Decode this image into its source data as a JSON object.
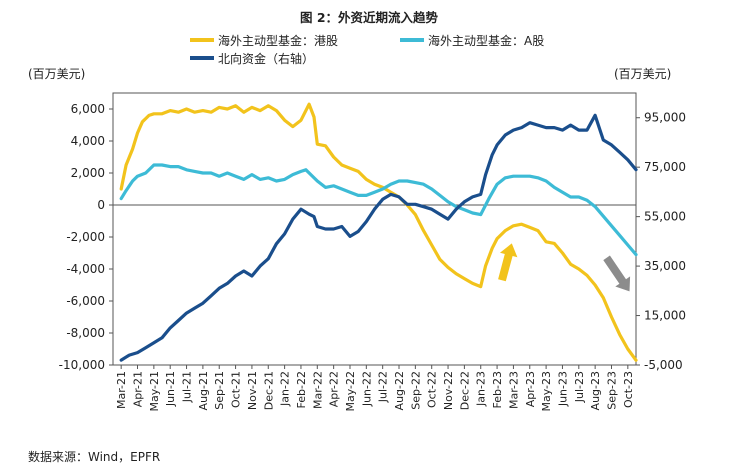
{
  "figure_title": "图 2：外资近期流入趋势",
  "source_note": "数据来源：Wind，EPFR",
  "colors": {
    "hk_active": "#F2C31C",
    "a_active": "#3DBBD6",
    "northbound": "#1A4E8C",
    "arrow_up": "#F2C31C",
    "arrow_down": "#8C8C8C"
  },
  "chart_data": {
    "type": "line",
    "y_left": {
      "unit_label": "(百万美元)",
      "range": [
        -10000,
        7000
      ],
      "ticks": [
        -10000,
        -8000,
        -6000,
        -4000,
        -2000,
        0,
        2000,
        4000,
        6000
      ],
      "tick_labels": [
        "-10,000",
        "-8,000",
        "-6,000",
        "-4,000",
        "-2,000",
        "0",
        "2,000",
        "4,000",
        "6,000"
      ]
    },
    "y_right": {
      "unit_label": "(百万美元)",
      "range": [
        -5000,
        105000
      ],
      "ticks": [
        -5000,
        15000,
        35000,
        55000,
        75000,
        95000
      ],
      "tick_labels": [
        "-5,000",
        "15,000",
        "35,000",
        "55,000",
        "75,000",
        "95,000"
      ]
    },
    "x_tick_labels": [
      "Mar-21",
      "Apr-21",
      "May-21",
      "Jun-21",
      "Jul-21",
      "Aug-21",
      "Sep-21",
      "Oct-21",
      "Nov-21",
      "Dec-21",
      "Jan-22",
      "Feb-22",
      "Mar-22",
      "Apr-22",
      "May-22",
      "Jun-22",
      "Jul-22",
      "Aug-22",
      "Sep-22",
      "Oct-22",
      "Nov-22",
      "Dec-22",
      "Jan-23",
      "Feb-23",
      "Mar-23",
      "Apr-23",
      "May-23",
      "Jun-23",
      "Jul-23",
      "Aug-23",
      "Sep-23",
      "Oct-23"
    ],
    "series": [
      {
        "name": "海外主动型基金：港股",
        "axis": "left",
        "color_key": "hk_active",
        "points": [
          [
            0,
            1000
          ],
          [
            0.3,
            2500
          ],
          [
            0.7,
            3500
          ],
          [
            1,
            4500
          ],
          [
            1.3,
            5200
          ],
          [
            1.7,
            5600
          ],
          [
            2,
            5700
          ],
          [
            2.5,
            5700
          ],
          [
            3,
            5900
          ],
          [
            3.5,
            5800
          ],
          [
            4,
            6000
          ],
          [
            4.5,
            5800
          ],
          [
            5,
            5900
          ],
          [
            5.5,
            5800
          ],
          [
            6,
            6100
          ],
          [
            6.5,
            6000
          ],
          [
            7,
            6200
          ],
          [
            7.5,
            5800
          ],
          [
            8,
            6100
          ],
          [
            8.5,
            5900
          ],
          [
            9,
            6200
          ],
          [
            9.5,
            5900
          ],
          [
            10,
            5300
          ],
          [
            10.5,
            4900
          ],
          [
            11,
            5300
          ],
          [
            11.5,
            6300
          ],
          [
            11.8,
            5500
          ],
          [
            12,
            3800
          ],
          [
            12.5,
            3700
          ],
          [
            13,
            3000
          ],
          [
            13.5,
            2500
          ],
          [
            14,
            2300
          ],
          [
            14.5,
            2100
          ],
          [
            15,
            1600
          ],
          [
            15.5,
            1300
          ],
          [
            16,
            1100
          ],
          [
            16.5,
            800
          ],
          [
            17,
            500
          ],
          [
            17.5,
            0
          ],
          [
            18,
            -600
          ],
          [
            18.5,
            -1600
          ],
          [
            19,
            -2500
          ],
          [
            19.5,
            -3400
          ],
          [
            20,
            -3900
          ],
          [
            20.5,
            -4300
          ],
          [
            21,
            -4600
          ],
          [
            21.5,
            -4900
          ],
          [
            22,
            -5100
          ],
          [
            22.3,
            -3800
          ],
          [
            22.7,
            -2700
          ],
          [
            23,
            -2100
          ],
          [
            23.5,
            -1600
          ],
          [
            24,
            -1300
          ],
          [
            24.5,
            -1200
          ],
          [
            25,
            -1400
          ],
          [
            25.5,
            -1600
          ],
          [
            26,
            -2300
          ],
          [
            26.5,
            -2400
          ],
          [
            27,
            -3000
          ],
          [
            27.5,
            -3700
          ],
          [
            28,
            -4000
          ],
          [
            28.5,
            -4400
          ],
          [
            29,
            -5000
          ],
          [
            29.5,
            -5800
          ],
          [
            30,
            -7000
          ],
          [
            30.5,
            -8100
          ],
          [
            31,
            -9000
          ],
          [
            31.5,
            -9700
          ]
        ]
      },
      {
        "name": "海外主动型基金：A股",
        "axis": "left",
        "color_key": "a_active",
        "points": [
          [
            0,
            400
          ],
          [
            0.3,
            900
          ],
          [
            0.7,
            1500
          ],
          [
            1,
            1800
          ],
          [
            1.5,
            2000
          ],
          [
            2,
            2500
          ],
          [
            2.5,
            2500
          ],
          [
            3,
            2400
          ],
          [
            3.5,
            2400
          ],
          [
            4,
            2200
          ],
          [
            4.5,
            2100
          ],
          [
            5,
            2000
          ],
          [
            5.5,
            2000
          ],
          [
            6,
            1800
          ],
          [
            6.5,
            2000
          ],
          [
            7,
            1800
          ],
          [
            7.5,
            1600
          ],
          [
            8,
            1900
          ],
          [
            8.5,
            1600
          ],
          [
            9,
            1700
          ],
          [
            9.5,
            1500
          ],
          [
            10,
            1600
          ],
          [
            10.5,
            1900
          ],
          [
            11,
            2100
          ],
          [
            11.3,
            2200
          ],
          [
            11.6,
            1900
          ],
          [
            12,
            1500
          ],
          [
            12.5,
            1100
          ],
          [
            13,
            1200
          ],
          [
            13.5,
            1000
          ],
          [
            14,
            800
          ],
          [
            14.5,
            600
          ],
          [
            15,
            600
          ],
          [
            15.5,
            800
          ],
          [
            16,
            1000
          ],
          [
            16.5,
            1300
          ],
          [
            17,
            1500
          ],
          [
            17.5,
            1500
          ],
          [
            18,
            1400
          ],
          [
            18.5,
            1300
          ],
          [
            19,
            1000
          ],
          [
            19.5,
            600
          ],
          [
            20,
            200
          ],
          [
            20.5,
            -100
          ],
          [
            21,
            -300
          ],
          [
            21.5,
            -500
          ],
          [
            22,
            -600
          ],
          [
            22.5,
            400
          ],
          [
            23,
            1300
          ],
          [
            23.5,
            1700
          ],
          [
            24,
            1800
          ],
          [
            24.5,
            1800
          ],
          [
            25,
            1800
          ],
          [
            25.5,
            1700
          ],
          [
            26,
            1500
          ],
          [
            26.5,
            1100
          ],
          [
            27,
            800
          ],
          [
            27.5,
            500
          ],
          [
            28,
            500
          ],
          [
            28.5,
            300
          ],
          [
            29,
            -100
          ],
          [
            29.5,
            -700
          ],
          [
            30,
            -1300
          ],
          [
            30.5,
            -1900
          ],
          [
            31,
            -2500
          ],
          [
            31.5,
            -3100
          ]
        ]
      },
      {
        "name": "北向资金（右轴）",
        "axis": "right",
        "color_key": "northbound",
        "points": [
          [
            0,
            -3000
          ],
          [
            0.5,
            -1000
          ],
          [
            1,
            0
          ],
          [
            1.5,
            2000
          ],
          [
            2,
            4000
          ],
          [
            2.5,
            6000
          ],
          [
            3,
            10000
          ],
          [
            3.5,
            13000
          ],
          [
            4,
            16000
          ],
          [
            4.5,
            18000
          ],
          [
            5,
            20000
          ],
          [
            5.5,
            23000
          ],
          [
            6,
            26000
          ],
          [
            6.5,
            28000
          ],
          [
            7,
            31000
          ],
          [
            7.5,
            33000
          ],
          [
            8,
            31000
          ],
          [
            8.5,
            35000
          ],
          [
            9,
            38000
          ],
          [
            9.5,
            44000
          ],
          [
            10,
            48000
          ],
          [
            10.5,
            54000
          ],
          [
            11,
            58000
          ],
          [
            11.5,
            56000
          ],
          [
            11.8,
            55000
          ],
          [
            12,
            51000
          ],
          [
            12.5,
            50000
          ],
          [
            13,
            50000
          ],
          [
            13.5,
            51000
          ],
          [
            14,
            47000
          ],
          [
            14.5,
            49000
          ],
          [
            15,
            53000
          ],
          [
            15.5,
            58000
          ],
          [
            16,
            62000
          ],
          [
            16.5,
            64000
          ],
          [
            17,
            63000
          ],
          [
            17.5,
            60000
          ],
          [
            18,
            60000
          ],
          [
            18.5,
            59000
          ],
          [
            19,
            58000
          ],
          [
            19.5,
            56000
          ],
          [
            20,
            54000
          ],
          [
            20.5,
            58000
          ],
          [
            21,
            61000
          ],
          [
            21.5,
            63000
          ],
          [
            22,
            64000
          ],
          [
            22.3,
            72000
          ],
          [
            22.7,
            80000
          ],
          [
            23,
            84000
          ],
          [
            23.5,
            88000
          ],
          [
            24,
            90000
          ],
          [
            24.5,
            91000
          ],
          [
            25,
            93000
          ],
          [
            25.5,
            92000
          ],
          [
            26,
            91000
          ],
          [
            26.5,
            91000
          ],
          [
            27,
            90000
          ],
          [
            27.5,
            92000
          ],
          [
            28,
            90000
          ],
          [
            28.5,
            90000
          ],
          [
            29,
            96000
          ],
          [
            29.5,
            86000
          ],
          [
            30,
            84000
          ],
          [
            30.5,
            81000
          ],
          [
            31,
            78000
          ],
          [
            31.5,
            74000
          ]
        ]
      }
    ],
    "legend": {
      "placement": "top-center",
      "entries": [
        "海外主动型基金：港股",
        "海外主动型基金：A股",
        "北向资金（右轴）"
      ]
    },
    "annotations": [
      {
        "type": "arrow",
        "direction": "up",
        "color_key": "arrow_up",
        "from": [
          23.3,
          -4700
        ],
        "to": [
          23.9,
          -2400
        ]
      },
      {
        "type": "arrow",
        "direction": "down-right",
        "color_key": "arrow_down",
        "from": [
          29.7,
          -3300
        ],
        "to": [
          31.1,
          -5400
        ]
      }
    ],
    "grid": false
  }
}
